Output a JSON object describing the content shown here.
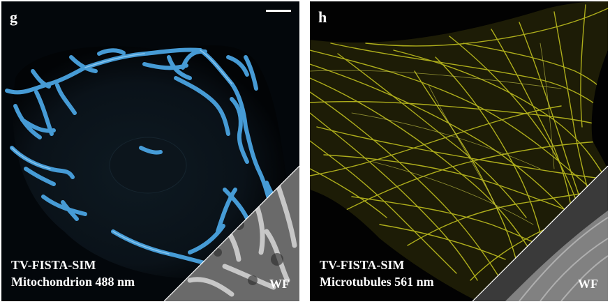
{
  "figure": {
    "panels": [
      {
        "letter": "g",
        "caption_line1": "TV-FISTA-SIM",
        "caption_line2": "Mitochondrion 488 nm",
        "corner_label": "WF",
        "color": "#4aa3e0",
        "has_scale_bar": true
      },
      {
        "letter": "h",
        "caption_line1": "TV-FISTA-SIM",
        "caption_line2": "Microtubules 561 nm",
        "corner_label": "WF",
        "color": "#c8c820",
        "has_scale_bar": false
      }
    ]
  }
}
